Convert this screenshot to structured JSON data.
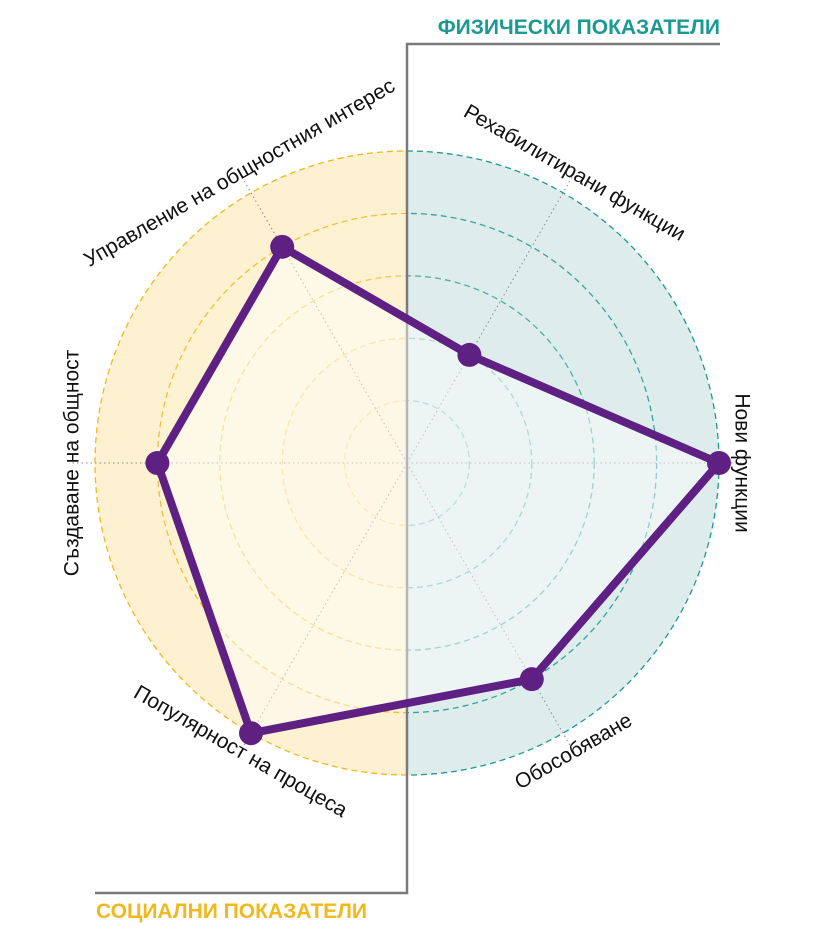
{
  "physical_title": "ФИЗИЧЕСКИ ПОКАЗАТЕЛИ",
  "social_title": "СОЦИАЛНИ ПОКАЗАТЕЛИ",
  "colors": {
    "physical": "#1a9a92",
    "physical_fill": "#dfecec",
    "social": "#f2b81c",
    "social_fill": "#fdf1d2",
    "series": "#5e2083",
    "frame": "#7a7a7a"
  },
  "chart_data": {
    "type": "radar",
    "rings": 5,
    "max": 5,
    "axes": [
      {
        "label": "Нови функции",
        "group": "physical",
        "value": 5
      },
      {
        "label": "Рехабилитирани функции",
        "group": "physical",
        "value": 2
      },
      {
        "label": "Управление на общностния интерес",
        "group": "social",
        "value": 4
      },
      {
        "label": "Създаване на общност",
        "group": "social",
        "value": 4
      },
      {
        "label": "Популярност на процеса",
        "group": "social",
        "value": 5
      },
      {
        "label": "Обособяване",
        "group": "physical",
        "value": 4
      }
    ]
  }
}
